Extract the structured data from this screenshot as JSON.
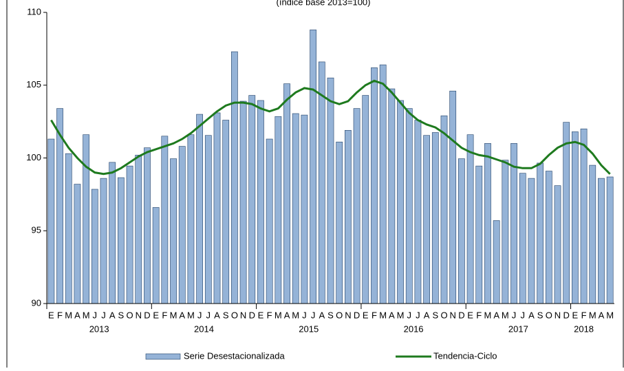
{
  "chart_data": {
    "type": "bar-line",
    "subtitle": "(índice base 2013=100)",
    "categories": [
      "E",
      "F",
      "M",
      "A",
      "M",
      "J",
      "J",
      "A",
      "S",
      "O",
      "N",
      "D",
      "E",
      "F",
      "M",
      "A",
      "M",
      "J",
      "J",
      "A",
      "S",
      "O",
      "N",
      "D",
      "E",
      "F",
      "M",
      "A",
      "M",
      "J",
      "J",
      "A",
      "S",
      "O",
      "N",
      "D",
      "E",
      "F",
      "M",
      "A",
      "M",
      "J",
      "J",
      "A",
      "S",
      "O",
      "N",
      "D",
      "E",
      "F",
      "M",
      "A",
      "M",
      "J",
      "J",
      "A",
      "S",
      "O",
      "N",
      "D",
      "E",
      "F",
      "M",
      "A",
      "M"
    ],
    "years": [
      "2013",
      "2014",
      "2015",
      "2016",
      "2017",
      "2018"
    ],
    "series": [
      {
        "name": "Serie Desestacionalizada",
        "kind": "bar",
        "color": "#95b3d7",
        "values": [
          101.3,
          103.4,
          100.3,
          98.2,
          101.6,
          97.85,
          98.6,
          99.7,
          98.65,
          99.45,
          100.2,
          100.7,
          96.6,
          101.5,
          99.95,
          100.8,
          101.6,
          103.0,
          101.55,
          103.1,
          102.6,
          107.3,
          103.9,
          104.3,
          103.95,
          101.3,
          102.85,
          105.1,
          103.05,
          102.95,
          108.8,
          106.6,
          105.5,
          101.1,
          101.9,
          103.4,
          104.3,
          106.2,
          106.4,
          104.75,
          103.95,
          103.4,
          102.6,
          101.55,
          101.75,
          102.9,
          104.6,
          99.95,
          101.6,
          99.45,
          101.0,
          95.7,
          99.85,
          101.0,
          98.95,
          98.6,
          99.65,
          99.1,
          98.1,
          102.45,
          101.8,
          102.0,
          99.5,
          98.6,
          98.7
        ]
      },
      {
        "name": "Tendencia-Ciclo",
        "kind": "line",
        "color": "#1e7a1e",
        "values": [
          102.6,
          101.6,
          100.7,
          100.0,
          99.4,
          99.0,
          98.9,
          99.0,
          99.3,
          99.7,
          100.1,
          100.4,
          100.6,
          100.8,
          101.0,
          101.3,
          101.7,
          102.2,
          102.7,
          103.2,
          103.6,
          103.8,
          103.8,
          103.7,
          103.4,
          103.2,
          103.4,
          104.0,
          104.5,
          104.8,
          104.7,
          104.3,
          103.9,
          103.7,
          103.9,
          104.5,
          105.0,
          105.3,
          105.1,
          104.5,
          103.8,
          103.1,
          102.6,
          102.3,
          102.1,
          101.7,
          101.2,
          100.7,
          100.4,
          100.2,
          100.1,
          99.9,
          99.7,
          99.4,
          99.3,
          99.3,
          99.6,
          100.2,
          100.7,
          101.0,
          101.1,
          100.9,
          100.3,
          99.5,
          98.9
        ]
      }
    ],
    "ylim": [
      90,
      110
    ],
    "yticks": [
      90,
      95,
      100,
      105,
      110
    ],
    "grid": false
  }
}
